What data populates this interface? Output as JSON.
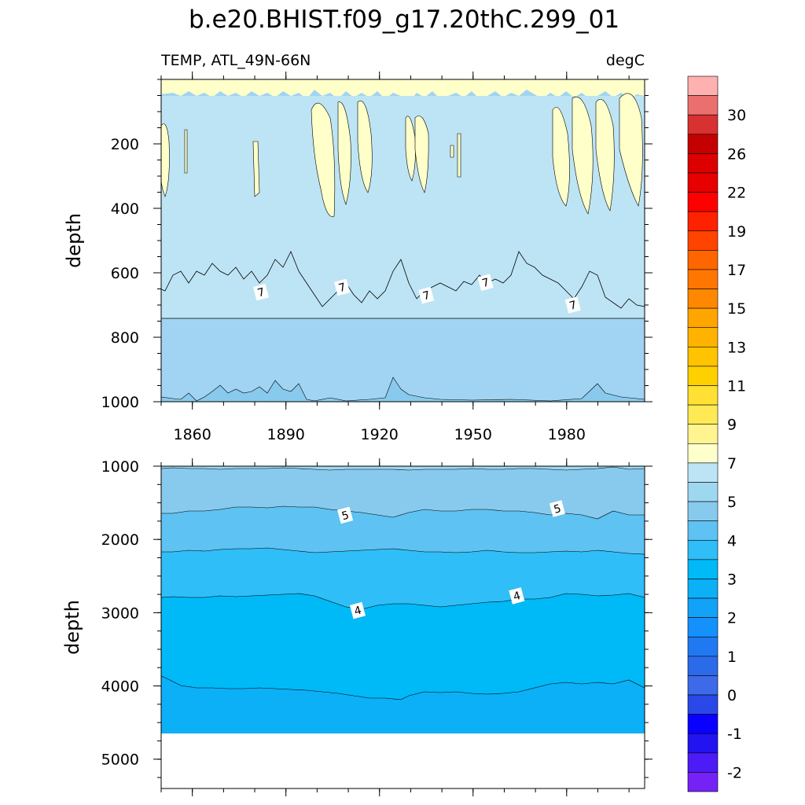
{
  "chart_data": {
    "type": "contour",
    "title": "b.e20.BHIST.f09_g17.20thC.299_01",
    "subtitle_left": "TEMP, ATL_49N-66N",
    "subtitle_right": "degC",
    "x_range": [
      1850,
      2005
    ],
    "x_ticks": [
      1860,
      1890,
      1920,
      1950,
      1980
    ],
    "panels": [
      {
        "name": "upper",
        "ylabel": "depth",
        "ylim": [
          0,
          1000
        ],
        "y_ticks": [
          200,
          400,
          600,
          800,
          1000
        ],
        "contour_labels": [
          {
            "text": "7",
            "x": 1882,
            "y": 660
          },
          {
            "text": "7",
            "x": 1908,
            "y": 645
          },
          {
            "text": "7",
            "x": 1935,
            "y": 670
          },
          {
            "text": "7",
            "x": 1954,
            "y": 630
          },
          {
            "text": "7",
            "x": 1982,
            "y": 700
          }
        ]
      },
      {
        "name": "lower",
        "ylabel": "depth",
        "ylim": [
          1000,
          5400
        ],
        "y_ticks": [
          1000,
          2000,
          3000,
          4000,
          5000
        ],
        "data_bottom_depth": 4600,
        "contour_labels": [
          {
            "text": "5",
            "x": 1909,
            "y": 1670
          },
          {
            "text": "5",
            "x": 1977,
            "y": 1580
          },
          {
            "text": "4",
            "x": 1913,
            "y": 2970
          },
          {
            "text": "4",
            "x": 1964,
            "y": 2770
          }
        ]
      }
    ],
    "colorbar": {
      "levels": [
        -3,
        -2.5,
        -2,
        -1.5,
        -1,
        -0.5,
        0,
        0.5,
        1,
        1.5,
        2,
        2.5,
        3,
        3.5,
        4,
        4.5,
        5,
        6,
        7,
        8,
        9,
        10,
        11,
        12,
        13,
        14,
        15,
        16,
        17,
        18,
        19,
        20,
        22,
        24,
        26,
        28,
        30,
        32
      ],
      "labels": [
        "30",
        "26",
        "22",
        "19",
        "17",
        "15",
        "13",
        "11",
        "9",
        "7",
        "5",
        "4",
        "3",
        "2",
        "1",
        "0",
        "-1",
        "-2"
      ],
      "colors": [
        "#ffb0b0",
        "#ec6f6f",
        "#d83131",
        "#c40000",
        "#dc0000",
        "#e60000",
        "#ff0000",
        "#ff2200",
        "#ff4400",
        "#ff6600",
        "#ff7700",
        "#ff8800",
        "#ffa500",
        "#ffb300",
        "#ffc300",
        "#ffd000",
        "#ffe033",
        "#ffea55",
        "#fff48f",
        "#ffffcc",
        "#bde4f4",
        "#9ed7f0",
        "#88caee",
        "#5ec2f2",
        "#2fbef7",
        "#00b9f7",
        "#0bb0f7",
        "#12a2f8",
        "#1591fd",
        "#2079f0",
        "#2b6ae8",
        "#3c6ae8",
        "#2a48e8",
        "#0a00ff",
        "#2114f0",
        "#4d1bf5",
        "#7422f5"
      ]
    }
  }
}
